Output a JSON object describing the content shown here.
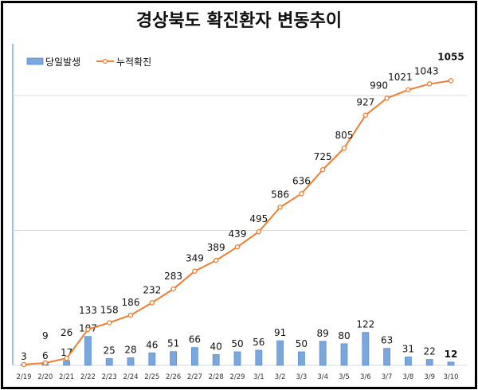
{
  "chart_data": {
    "type": "bar+line",
    "title": "경상북도 확진환자 변동추이",
    "categories": [
      "2/19",
      "2/20",
      "2/21",
      "2/22",
      "2/23",
      "2/24",
      "2/25",
      "2/26",
      "2/27",
      "2/28",
      "2/29",
      "3/1",
      "3/2",
      "3/3",
      "3/4",
      "3/5",
      "3/6",
      "3/7",
      "3/8",
      "3/9",
      "3/10"
    ],
    "series": [
      {
        "name": "당일발생",
        "type": "bar",
        "color": "#7aa7dc",
        "values": [
          3,
          6,
          17,
          107,
          25,
          28,
          46,
          51,
          66,
          40,
          50,
          56,
          91,
          50,
          89,
          80,
          122,
          63,
          31,
          22,
          12
        ]
      },
      {
        "name": "누적확진",
        "type": "line",
        "color": "#ed7d31",
        "values": [
          3,
          9,
          26,
          133,
          158,
          186,
          232,
          283,
          349,
          389,
          439,
          495,
          586,
          636,
          725,
          805,
          927,
          990,
          1021,
          1043,
          1055
        ]
      }
    ],
    "highlight_color": "#ff0000",
    "ylim": [
      0,
      1100
    ],
    "gridlines": [
      500,
      1000
    ],
    "legend_position": "top-left",
    "xlabel": "",
    "ylabel": ""
  }
}
